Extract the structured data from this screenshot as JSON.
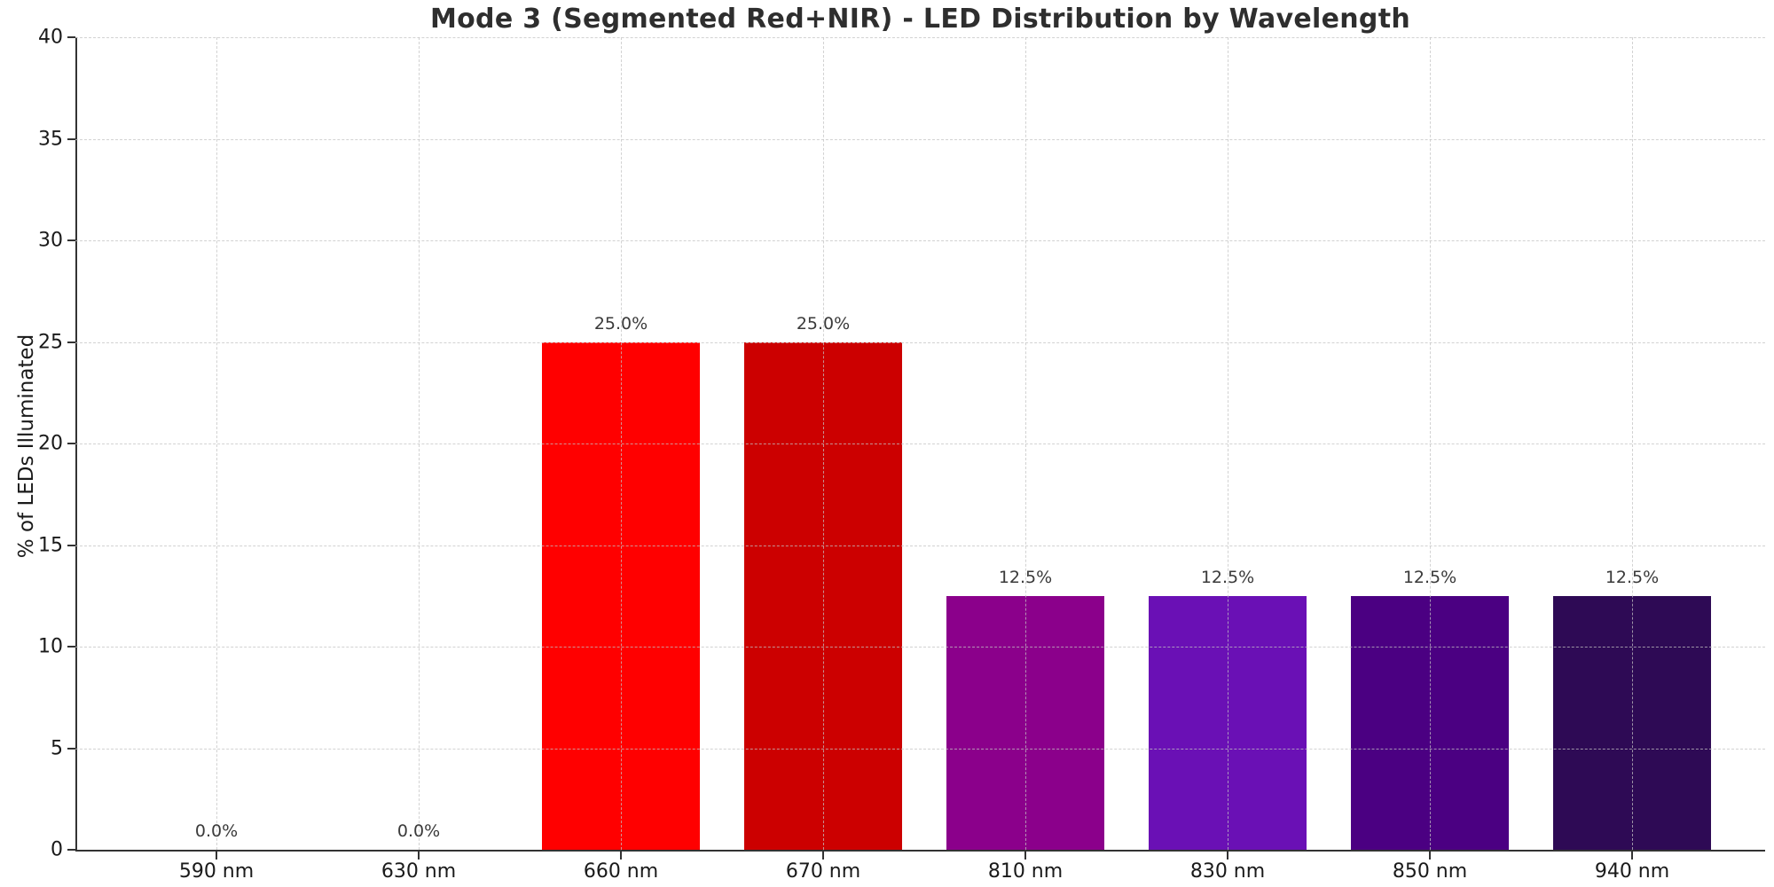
{
  "figure": {
    "title": "Mode 3 (Segmented Red+NIR) - LED Distribution by Wavelength",
    "ylabel": "% of LEDs Illuminated"
  },
  "chart_data": {
    "type": "bar",
    "title": "Mode 3 (Segmented Red+NIR) - LED Distribution by Wavelength",
    "xlabel": "",
    "ylabel": "% of LEDs Illuminated",
    "ylim": [
      0,
      40
    ],
    "yticks": [
      0,
      5,
      10,
      15,
      20,
      25,
      30,
      35,
      40
    ],
    "grid": true,
    "grid_style": "dashed",
    "legend_position": "none",
    "categories": [
      "590 nm",
      "630 nm",
      "660 nm",
      "670 nm",
      "810 nm",
      "830 nm",
      "850 nm",
      "940 nm"
    ],
    "values": [
      0.0,
      0.0,
      25.0,
      25.0,
      12.5,
      12.5,
      12.5,
      12.5
    ],
    "bar_labels": [
      "0.0%",
      "0.0%",
      "25.0%",
      "25.0%",
      "12.5%",
      "12.5%",
      "12.5%",
      "12.5%"
    ],
    "bar_colors": [
      null,
      null,
      "#ff0000",
      "#cc0000",
      "#8b008b",
      "#6a10b5",
      "#4b0082",
      "#2e0a55"
    ],
    "colors": {
      "title_text": "#2e2e2e",
      "axis_text": "#1a1a1a",
      "spine": "#333333",
      "gridline": "#c3c3c3",
      "background": "#ffffff"
    }
  }
}
